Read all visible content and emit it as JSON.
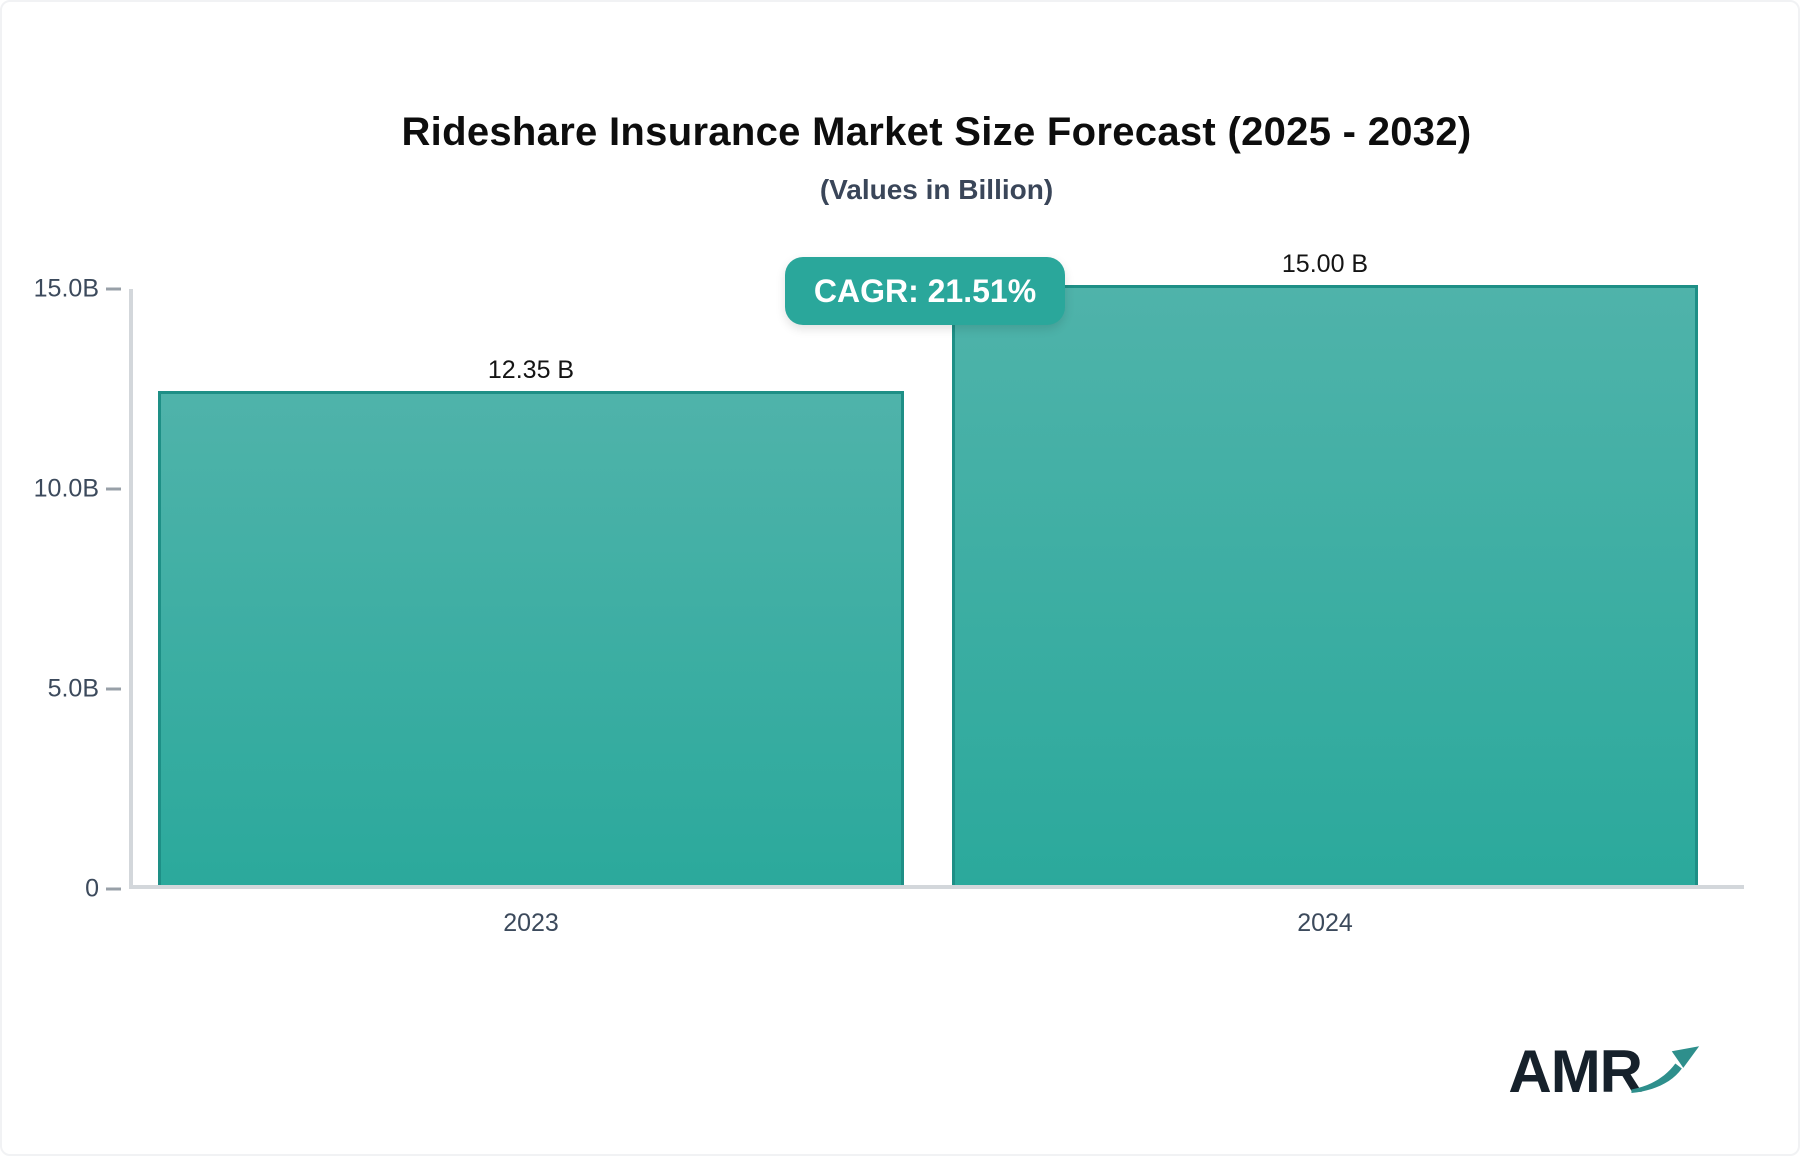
{
  "header": {
    "title": "Rideshare Insurance Market Size Forecast (2025 - 2032)",
    "subtitle": "(Values in Billion)"
  },
  "badge": {
    "label": "CAGR: 21.51%"
  },
  "logo": {
    "text": "AMR"
  },
  "colors": {
    "bar_gradient_top": "#4FB3AA",
    "bar_gradient_bottom": "#2BA99C",
    "bar_border": "#1E8F86",
    "badge_bg": "#2AA79B",
    "axis_line": "#D3D7DB",
    "tick_label": "#3C4A5C",
    "value_label": "#141414",
    "logo_text": "#16212B",
    "logo_arrow": "#2E8F8C"
  },
  "chart_data": {
    "type": "bar",
    "title": "Rideshare Insurance Market Size Forecast (2025 - 2032)",
    "subtitle": "(Values in Billion)",
    "categories": [
      "2023",
      "2024"
    ],
    "values": [
      12.35,
      15.0
    ],
    "value_labels": [
      "12.35 B",
      "15.00 B"
    ],
    "ylim": [
      0,
      15
    ],
    "yticks": [
      {
        "value": 15,
        "label": "15.0B"
      },
      {
        "value": 10,
        "label": "10.0B"
      },
      {
        "value": 5,
        "label": "5.0B"
      },
      {
        "value": 0,
        "label": "0"
      }
    ],
    "annotation": "CAGR: 21.51%",
    "grid": false,
    "legend": false
  }
}
